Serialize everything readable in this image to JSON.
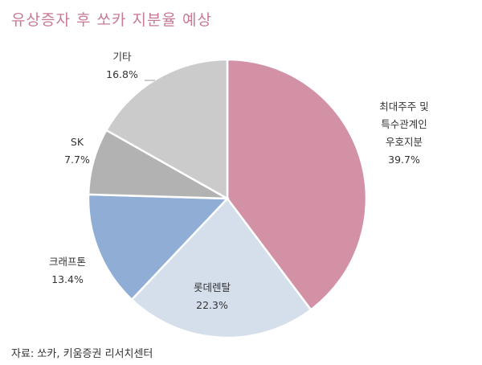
{
  "chart_data": {
    "type": "pie",
    "title": "유상증자 후 쏘카 지분율 예상",
    "unit": "%",
    "slices": [
      {
        "label": "최대주주 및\n특수관계인\n우호지분",
        "value": 39.7,
        "value_label": "39.7%",
        "color": "#d391a6"
      },
      {
        "label": "롯데렌탈",
        "value": 22.3,
        "value_label": "22.3%",
        "color": "#d5dfec"
      },
      {
        "label": "크래프톤",
        "value": 13.4,
        "value_label": "13.4%",
        "color": "#8fadd5"
      },
      {
        "label": "SK",
        "value": 7.7,
        "value_label": "7.7%",
        "color": "#b2b2b2"
      },
      {
        "label": "기타",
        "value": 16.8,
        "value_label": "16.8%",
        "color": "#cbcbcb"
      }
    ],
    "start_position": "12 o'clock",
    "direction": "clockwise"
  },
  "source": "자료: 쏘카, 키움증권 리서치센터"
}
